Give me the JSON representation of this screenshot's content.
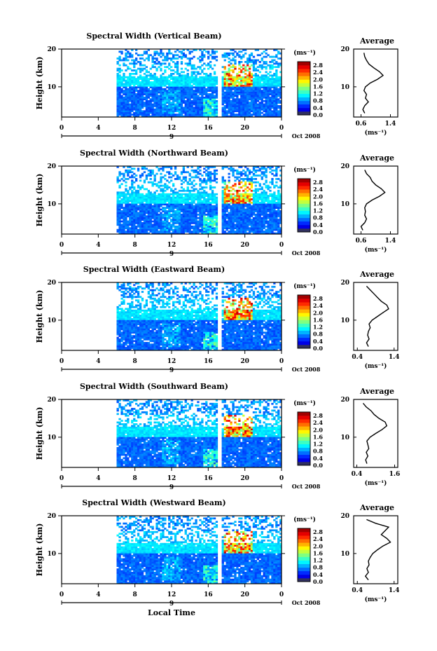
{
  "figure": {
    "x_axis_label": "Local Time",
    "date_label": "Oct 2008",
    "colorbar_unit": "(ms⁻¹)",
    "average_title": "Average",
    "average_unit": "(ms⁻¹)",
    "y_axis_label": "Height (km)"
  },
  "chart_data": [
    {
      "type": "heatmap",
      "title": "Spectral Width (Vertical Beam)",
      "ylabel": "Height (km)",
      "x_ticks": [
        "0",
        "4",
        "8",
        "12",
        "16",
        "20",
        "0"
      ],
      "x_range": [
        0,
        24
      ],
      "y_ticks": [
        "10",
        "20"
      ],
      "y_range": [
        2,
        20
      ],
      "day_label": "9",
      "colorbar_ticks": [
        "2.8",
        "2.4",
        "2.0",
        "1.6",
        "1.2",
        "0.8",
        "0.4",
        "0.0"
      ],
      "colorbar_range": [
        0,
        3.0
      ],
      "data_start_hour": 6,
      "gap_hour": 17.2,
      "average_profile": {
        "type": "line",
        "title": "Average",
        "x_ticks": [
          "0.6",
          "1.4"
        ],
        "xlim": [
          0.4,
          1.6
        ],
        "ylim": [
          2,
          20
        ],
        "height_km": [
          3,
          4,
          5,
          6,
          7,
          8,
          9,
          10,
          11,
          12,
          13,
          14,
          15,
          16,
          17,
          18,
          19
        ],
        "width_ms": [
          0.7,
          0.65,
          0.7,
          0.8,
          0.72,
          0.75,
          0.68,
          0.72,
          0.85,
          1.05,
          1.2,
          1.1,
          0.95,
          0.82,
          0.75,
          0.7,
          0.68
        ]
      }
    },
    {
      "type": "heatmap",
      "title": "Spectral Width (Northward Beam)",
      "ylabel": "Height (km)",
      "x_ticks": [
        "0",
        "4",
        "8",
        "12",
        "16",
        "20",
        "0"
      ],
      "x_range": [
        0,
        24
      ],
      "y_ticks": [
        "10",
        "20"
      ],
      "y_range": [
        2,
        20
      ],
      "day_label": "9",
      "colorbar_ticks": [
        "2.8",
        "2.4",
        "2.0",
        "1.6",
        "1.2",
        "0.8",
        "0.4",
        "0.0"
      ],
      "colorbar_range": [
        0,
        3.0
      ],
      "data_start_hour": 6,
      "gap_hour": 17.2,
      "average_profile": {
        "type": "line",
        "title": "Average",
        "x_ticks": [
          "0.6",
          "1.4"
        ],
        "xlim": [
          0.4,
          1.6
        ],
        "ylim": [
          2,
          20
        ],
        "height_km": [
          3,
          4,
          5,
          6,
          7,
          8,
          9,
          10,
          11,
          12,
          13,
          14,
          15,
          16,
          17,
          18,
          19
        ],
        "width_ms": [
          0.65,
          0.6,
          0.7,
          0.75,
          0.7,
          0.72,
          0.7,
          0.75,
          0.9,
          1.1,
          1.25,
          1.15,
          1.0,
          0.9,
          0.85,
          0.75,
          0.7
        ]
      }
    },
    {
      "type": "heatmap",
      "title": "Spectral Width (Eastward Beam)",
      "ylabel": "Height (km)",
      "x_ticks": [
        "0",
        "4",
        "8",
        "12",
        "16",
        "20",
        "0"
      ],
      "x_range": [
        0,
        24
      ],
      "y_ticks": [
        "10",
        "20"
      ],
      "y_range": [
        2,
        20
      ],
      "day_label": "9",
      "colorbar_ticks": [
        "2.8",
        "2.4",
        "2.0",
        "1.6",
        "1.2",
        "0.8",
        "0.4",
        "0.0"
      ],
      "colorbar_range": [
        0,
        3.0
      ],
      "data_start_hour": 6,
      "gap_hour": 17.2,
      "average_profile": {
        "type": "line",
        "title": "Average",
        "x_ticks": [
          "0.4",
          "1.4"
        ],
        "xlim": [
          0.3,
          1.5
        ],
        "ylim": [
          2,
          20
        ],
        "height_km": [
          3,
          4,
          5,
          6,
          7,
          8,
          9,
          10,
          11,
          12,
          13,
          14,
          15,
          16,
          17,
          18,
          19
        ],
        "width_ms": [
          0.7,
          0.65,
          0.72,
          0.68,
          0.7,
          0.75,
          0.72,
          0.8,
          0.95,
          1.1,
          1.25,
          1.2,
          1.05,
          0.95,
          0.85,
          0.75,
          0.65
        ]
      }
    },
    {
      "type": "heatmap",
      "title": "Spectral Width (Southward Beam)",
      "ylabel": "Height (km)",
      "x_ticks": [
        "0",
        "4",
        "8",
        "12",
        "16",
        "20",
        "0"
      ],
      "x_range": [
        0,
        24
      ],
      "y_ticks": [
        "10",
        "20"
      ],
      "y_range": [
        2,
        20
      ],
      "day_label": "9",
      "colorbar_ticks": [
        "2.8",
        "2.4",
        "2.0",
        "1.6",
        "1.2",
        "0.8",
        "0.4",
        "0.0"
      ],
      "colorbar_range": [
        0,
        3.0
      ],
      "data_start_hour": 6,
      "gap_hour": 17.2,
      "average_profile": {
        "type": "line",
        "title": "Average",
        "x_ticks": [
          "0.4",
          "1.6"
        ],
        "xlim": [
          0.3,
          1.7
        ],
        "ylim": [
          2,
          20
        ],
        "height_km": [
          3,
          4,
          5,
          6,
          7,
          8,
          9,
          10,
          11,
          12,
          13,
          14,
          15,
          16,
          17,
          18,
          19
        ],
        "width_ms": [
          0.72,
          0.68,
          0.75,
          0.7,
          0.78,
          0.75,
          0.72,
          0.82,
          1.0,
          1.2,
          1.35,
          1.3,
          1.1,
          0.95,
          0.85,
          0.7,
          0.6
        ]
      }
    },
    {
      "type": "heatmap",
      "title": "Spectral Width (Westward Beam)",
      "ylabel": "Height (km)",
      "x_ticks": [
        "0",
        "4",
        "8",
        "12",
        "16",
        "20",
        "0"
      ],
      "x_range": [
        0,
        24
      ],
      "y_ticks": [
        "10",
        "20"
      ],
      "y_range": [
        2,
        20
      ],
      "day_label": "9",
      "colorbar_ticks": [
        "2.8",
        "2.4",
        "2.0",
        "1.6",
        "1.2",
        "0.8",
        "0.4",
        "0.0"
      ],
      "colorbar_range": [
        0,
        3.0
      ],
      "data_start_hour": 6,
      "gap_hour": 17.2,
      "average_profile": {
        "type": "line",
        "title": "Average",
        "x_ticks": [
          "0.4",
          "1.4"
        ],
        "xlim": [
          0.3,
          1.5
        ],
        "ylim": [
          2,
          20
        ],
        "height_km": [
          3,
          4,
          5,
          6,
          7,
          8,
          9,
          10,
          11,
          12,
          13,
          14,
          15,
          16,
          17,
          18,
          19
        ],
        "width_ms": [
          0.7,
          0.62,
          0.7,
          0.66,
          0.72,
          0.7,
          0.75,
          0.82,
          0.95,
          1.1,
          1.3,
          1.2,
          1.05,
          1.15,
          1.25,
          0.9,
          0.65
        ]
      }
    }
  ]
}
